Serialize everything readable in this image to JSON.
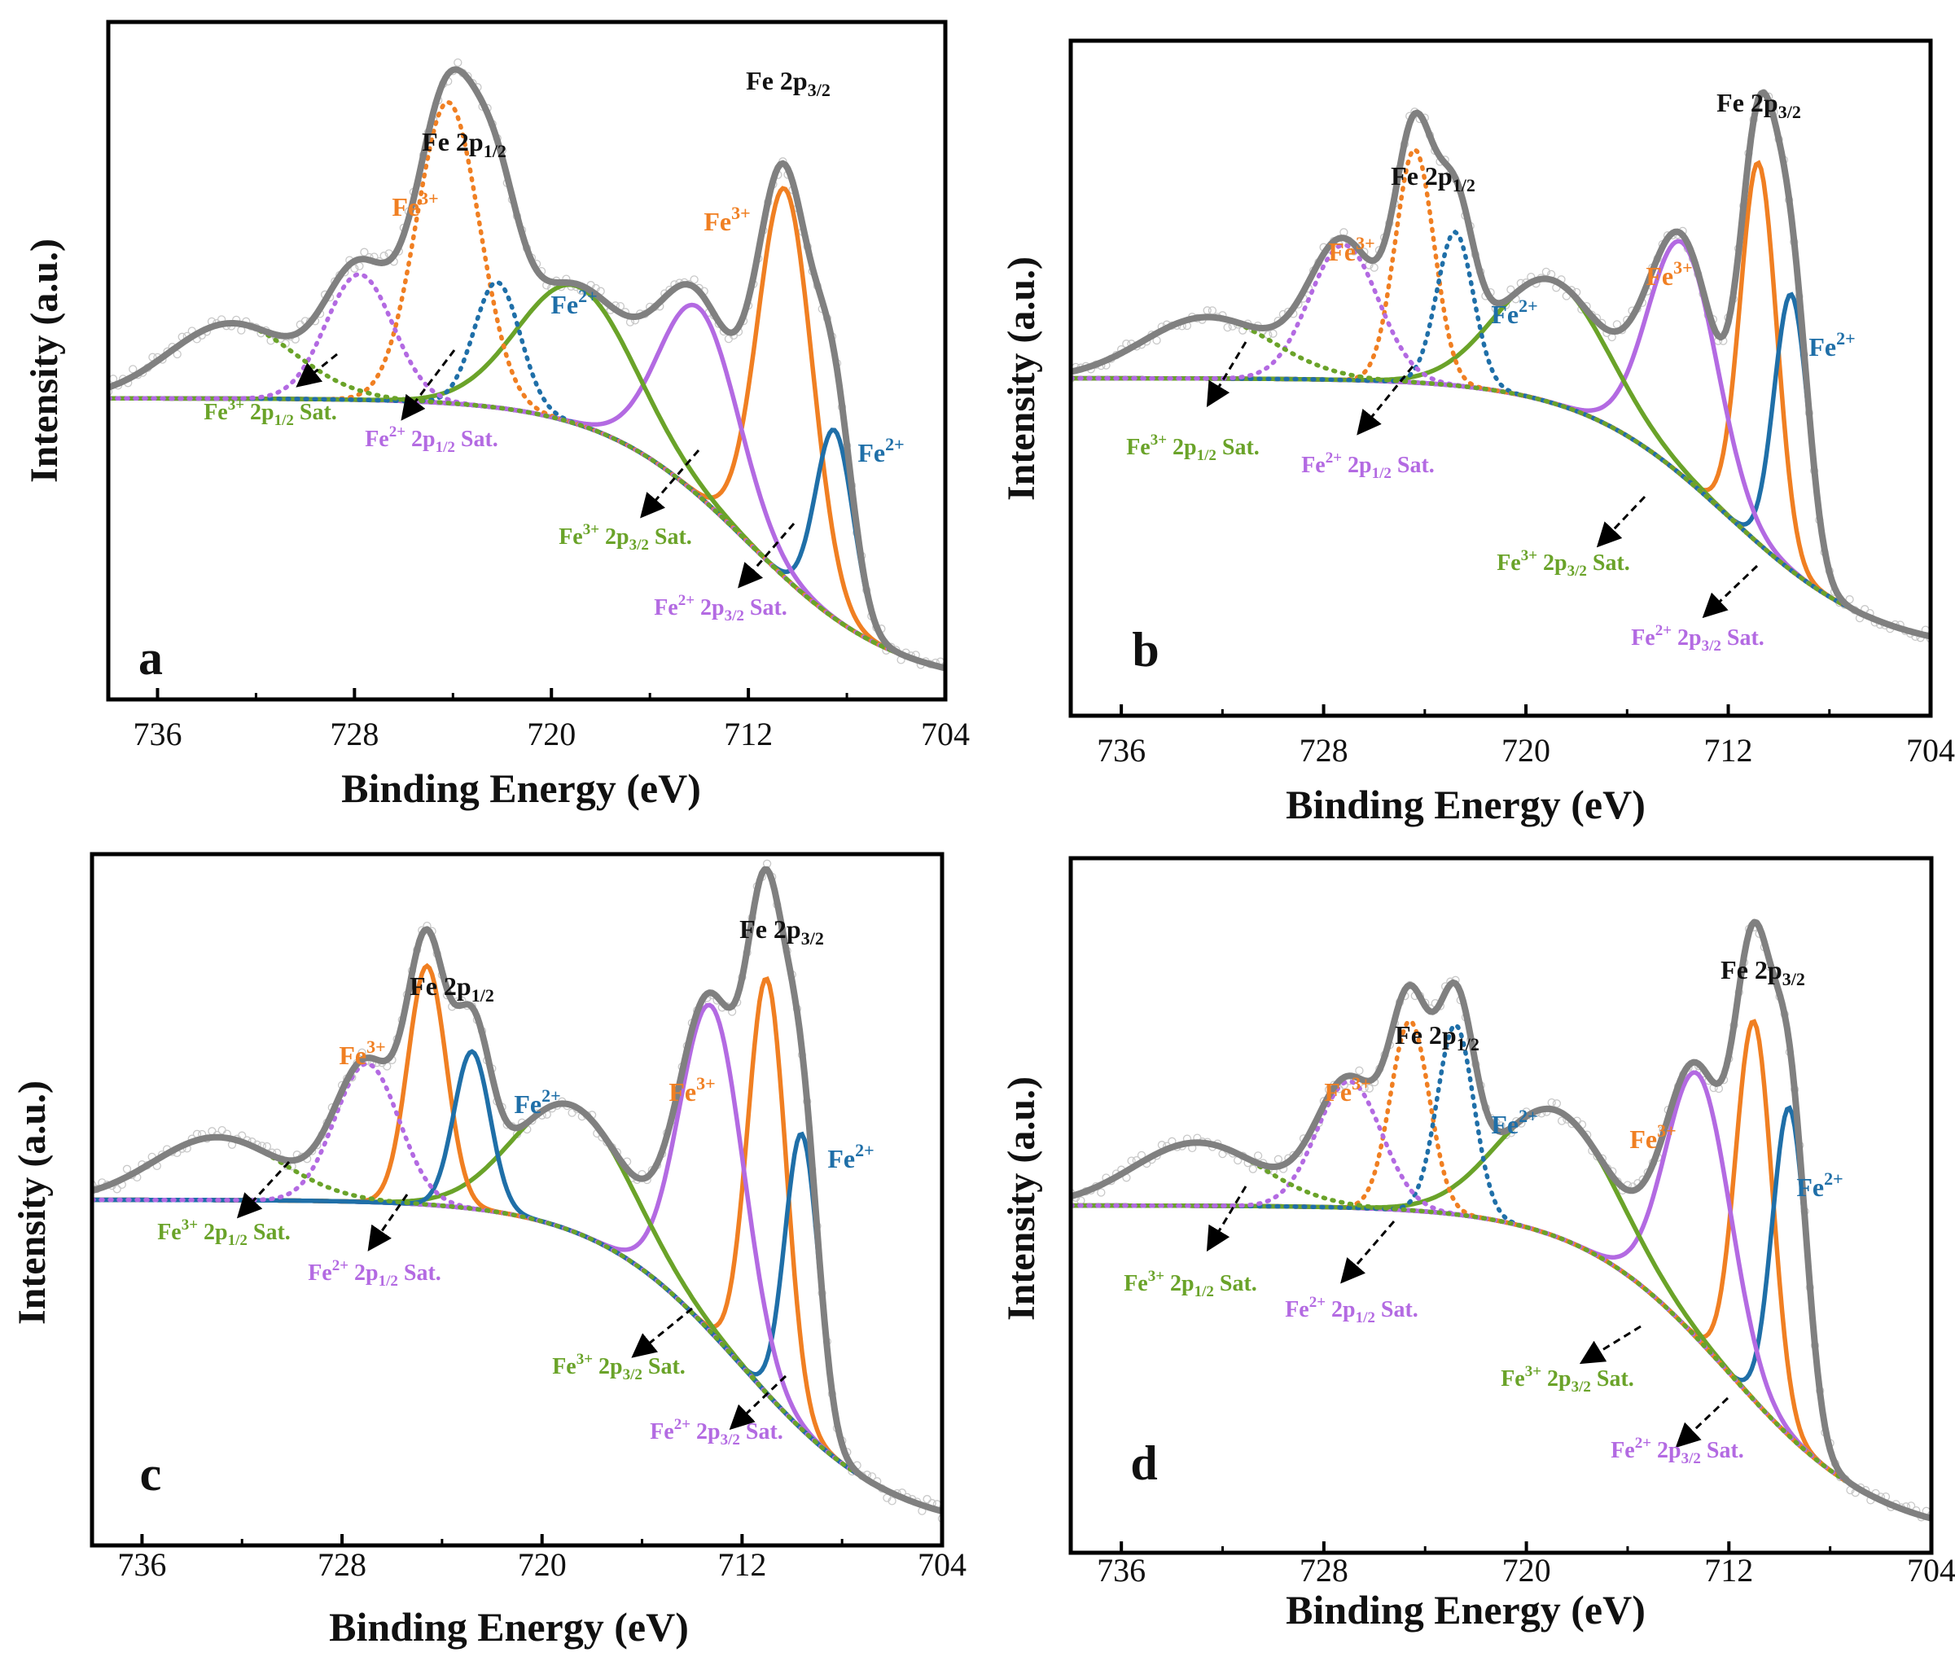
{
  "chart_data": [
    {
      "type": "line",
      "panel_label": "a",
      "title": "",
      "xlabel": "Binding Energy (eV)",
      "ylabel": "Intensity (a.u.)",
      "xlim": [
        738,
        704
      ],
      "ylim": [
        0,
        1.08
      ],
      "xticks": [
        "736",
        "728",
        "720",
        "712",
        "704"
      ],
      "peak_labels": {
        "main_3_2": {
          "base": "Fe 2p",
          "sub": "3/2"
        },
        "main_1_2": {
          "base": "Fe 2p",
          "sub": "1/2"
        },
        "fe3_3_2": {
          "base": "Fe",
          "sup": "3+"
        },
        "fe2_3_2": {
          "base": "Fe",
          "sup": "2+"
        },
        "fe3_1_2": {
          "base": "Fe",
          "sup": "3+"
        },
        "fe2_1_2": {
          "base": "Fe",
          "sup": "2+"
        }
      },
      "sat_labels": {
        "fe3_1_2_sat": {
          "pre": "Fe",
          "sup": "3+",
          "mid": " 2p",
          "sub": "1/2",
          "post": " Sat."
        },
        "fe2_1_2_sat": {
          "pre": "Fe",
          "sup": "2+",
          "mid": " 2p",
          "sub": "1/2",
          "post": " Sat."
        },
        "fe3_3_2_sat": {
          "pre": "Fe",
          "sup": "3+",
          "mid": " 2p",
          "sub": "3/2",
          "post": " Sat."
        },
        "fe2_3_2_sat": {
          "pre": "Fe",
          "sup": "2+",
          "mid": " 2p",
          "sub": "3/2",
          "post": " Sat."
        }
      },
      "background": {
        "low": 0.02,
        "high": 0.48,
        "center": 712,
        "width": 3.0
      },
      "components": [
        {
          "name": "Fe3+ 2p3/2",
          "center": 710.5,
          "fwhm": 2.6,
          "height": 0.62,
          "color": "#f07f22",
          "style": "solid"
        },
        {
          "name": "Fe2+ 2p3/2",
          "center": 708.5,
          "fwhm": 1.8,
          "height": 0.3,
          "color": "#1f6fa8",
          "style": "solid"
        },
        {
          "name": "Fe2+ 2p3/2 Sat.",
          "center": 714.0,
          "fwhm": 3.8,
          "height": 0.3,
          "color": "#b36ae2",
          "style": "solid"
        },
        {
          "name": "Fe3+ 2p3/2 Sat.",
          "center": 719.0,
          "fwhm": 5.5,
          "height": 0.22,
          "color": "#6aa329",
          "style": "solid"
        },
        {
          "name": "Fe3+ 2p1/2",
          "center": 724.2,
          "fwhm": 3.0,
          "height": 0.48,
          "color": "#f07f22",
          "style": "dotted"
        },
        {
          "name": "Fe2+ 2p1/2",
          "center": 722.2,
          "fwhm": 2.2,
          "height": 0.2,
          "color": "#1f6fa8",
          "style": "dotted"
        },
        {
          "name": "Fe2+ 2p1/2 Sat.",
          "center": 727.8,
          "fwhm": 3.2,
          "height": 0.2,
          "color": "#b36ae2",
          "style": "dotted"
        },
        {
          "name": "Fe3+ 2p1/2 Sat.",
          "center": 733.0,
          "fwhm": 6.0,
          "height": 0.12,
          "color": "#6aa329",
          "style": "dotted"
        }
      ]
    },
    {
      "type": "line",
      "panel_label": "b",
      "title": "",
      "xlabel": "Binding Energy (eV)",
      "ylabel": "Intensity (a.u.)",
      "xlim": [
        738,
        704
      ],
      "ylim": [
        0,
        1.1
      ],
      "xticks": [
        "736",
        "728",
        "720",
        "712",
        "704"
      ],
      "peak_labels": {
        "main_3_2": {
          "base": "Fe 2p",
          "sub": "3/2"
        },
        "main_1_2": {
          "base": "Fe 2p",
          "sub": "1/2"
        },
        "fe3_3_2": {
          "base": "Fe",
          "sup": "3+"
        },
        "fe2_3_2": {
          "base": "Fe",
          "sup": "2+"
        },
        "fe3_1_2": {
          "base": "Fe",
          "sup": "3+"
        },
        "fe2_1_2": {
          "base": "Fe",
          "sup": "2+"
        }
      },
      "sat_labels": {
        "fe3_1_2_sat": {
          "pre": "Fe",
          "sup": "3+",
          "mid": " 2p",
          "sub": "1/2",
          "post": " Sat."
        },
        "fe2_1_2_sat": {
          "pre": "Fe",
          "sup": "2+",
          "mid": " 2p",
          "sub": "1/2",
          "post": " Sat."
        },
        "fe3_3_2_sat": {
          "pre": "Fe",
          "sup": "3+",
          "mid": " 2p",
          "sub": "3/2",
          "post": " Sat."
        },
        "fe2_3_2_sat": {
          "pre": "Fe",
          "sup": "2+",
          "mid": " 2p",
          "sub": "3/2",
          "post": " Sat."
        }
      },
      "background": {
        "low": 0.1,
        "high": 0.55,
        "center": 712,
        "width": 3.0
      },
      "components": [
        {
          "name": "Fe3+ 2p3/2",
          "center": 710.8,
          "fwhm": 1.7,
          "height": 0.62,
          "color": "#f07f22",
          "style": "solid"
        },
        {
          "name": "Fe2+ 2p3/2",
          "center": 709.5,
          "fwhm": 1.6,
          "height": 0.45,
          "color": "#1f6fa8",
          "style": "solid"
        },
        {
          "name": "Fe2+ 2p3/2 Sat.",
          "center": 713.8,
          "fwhm": 3.2,
          "height": 0.38,
          "color": "#b36ae2",
          "style": "solid"
        },
        {
          "name": "Fe3+ 2p3/2 Sat.",
          "center": 719.0,
          "fwhm": 5.2,
          "height": 0.2,
          "color": "#6aa329",
          "style": "solid"
        },
        {
          "name": "Fe3+ 2p1/2",
          "center": 724.4,
          "fwhm": 1.8,
          "height": 0.38,
          "color": "#f07f22",
          "style": "dotted"
        },
        {
          "name": "Fe2+ 2p1/2",
          "center": 722.8,
          "fwhm": 1.7,
          "height": 0.25,
          "color": "#1f6fa8",
          "style": "dotted"
        },
        {
          "name": "Fe2+ 2p1/2 Sat.",
          "center": 727.2,
          "fwhm": 3.2,
          "height": 0.22,
          "color": "#b36ae2",
          "style": "dotted"
        },
        {
          "name": "Fe3+ 2p1/2 Sat.",
          "center": 732.6,
          "fwhm": 6.0,
          "height": 0.1,
          "color": "#6aa329",
          "style": "dotted"
        }
      ]
    },
    {
      "type": "line",
      "panel_label": "c",
      "title": "",
      "xlabel": "Binding Energy (eV)",
      "ylabel": "Intensity (a.u.)",
      "xlim": [
        738,
        704
      ],
      "ylim": [
        0,
        1.1
      ],
      "xticks": [
        "736",
        "728",
        "720",
        "712",
        "704"
      ],
      "peak_labels": {
        "main_3_2": {
          "base": "Fe 2p",
          "sub": "3/2"
        },
        "main_1_2": {
          "base": "Fe 2p",
          "sub": "1/2"
        },
        "fe3_3_2": {
          "base": "Fe",
          "sup": "3+"
        },
        "fe2_3_2": {
          "base": "Fe",
          "sup": "2+"
        },
        "fe3_1_2": {
          "base": "Fe",
          "sup": "3+"
        },
        "fe2_1_2": {
          "base": "Fe",
          "sup": "2+"
        }
      },
      "sat_labels": {
        "fe3_1_2_sat": {
          "pre": "Fe",
          "sup": "3+",
          "mid": " 2p",
          "sub": "1/2",
          "post": " Sat."
        },
        "fe2_1_2_sat": {
          "pre": "Fe",
          "sup": "2+",
          "mid": " 2p",
          "sub": "1/2",
          "post": " Sat."
        },
        "fe3_3_2_sat": {
          "pre": "Fe",
          "sup": "3+",
          "mid": " 2p",
          "sub": "3/2",
          "post": " Sat."
        },
        "fe2_3_2_sat": {
          "pre": "Fe",
          "sup": "2+",
          "mid": " 2p",
          "sub": "3/2",
          "post": " Sat."
        }
      },
      "background": {
        "low": 0.02,
        "high": 0.55,
        "center": 712,
        "width": 3.0
      },
      "components": [
        {
          "name": "Fe3+ 2p3/2",
          "center": 711.0,
          "fwhm": 1.8,
          "height": 0.66,
          "color": "#f07f22",
          "style": "solid"
        },
        {
          "name": "Fe2+ 2p3/2",
          "center": 709.6,
          "fwhm": 1.6,
          "height": 0.47,
          "color": "#1f6fa8",
          "style": "solid"
        },
        {
          "name": "Fe2+ 2p3/2 Sat.",
          "center": 713.2,
          "fwhm": 3.0,
          "height": 0.52,
          "color": "#b36ae2",
          "style": "solid"
        },
        {
          "name": "Fe3+ 2p3/2 Sat.",
          "center": 718.8,
          "fwhm": 5.5,
          "height": 0.2,
          "color": "#6aa329",
          "style": "solid"
        },
        {
          "name": "Fe3+ 2p1/2",
          "center": 724.6,
          "fwhm": 1.8,
          "height": 0.38,
          "color": "#f07f22",
          "style": "solid"
        },
        {
          "name": "Fe2+ 2p1/2",
          "center": 722.8,
          "fwhm": 1.7,
          "height": 0.25,
          "color": "#1f6fa8",
          "style": "solid"
        },
        {
          "name": "Fe2+ 2p1/2 Sat.",
          "center": 727.0,
          "fwhm": 3.0,
          "height": 0.22,
          "color": "#b36ae2",
          "style": "dotted"
        },
        {
          "name": "Fe3+ 2p1/2 Sat.",
          "center": 733.0,
          "fwhm": 6.0,
          "height": 0.1,
          "color": "#6aa329",
          "style": "dotted"
        }
      ]
    },
    {
      "type": "line",
      "panel_label": "d",
      "title": "",
      "xlabel": "Binding Energy (eV)",
      "ylabel": "Intensity (a.u.)",
      "xlim": [
        738,
        704
      ],
      "ylim": [
        0,
        1.1
      ],
      "xticks": [
        "736",
        "728",
        "720",
        "712",
        "704"
      ],
      "peak_labels": {
        "main_3_2": {
          "base": "Fe 2p",
          "sub": "3/2"
        },
        "main_1_2": {
          "base": "Fe 2p",
          "sub": "1/2"
        },
        "fe3_3_2": {
          "base": "Fe",
          "sup": "3+"
        },
        "fe2_3_2": {
          "base": "Fe",
          "sup": "2+"
        },
        "fe3_1_2": {
          "base": "Fe",
          "sup": "3+"
        },
        "fe2_1_2": {
          "base": "Fe",
          "sup": "2+"
        }
      },
      "sat_labels": {
        "fe3_1_2_sat": {
          "pre": "Fe",
          "sup": "3+",
          "mid": " 2p",
          "sub": "1/2",
          "post": " Sat."
        },
        "fe2_1_2_sat": {
          "pre": "Fe",
          "sup": "2+",
          "mid": " 2p",
          "sub": "1/2",
          "post": " Sat."
        },
        "fe3_3_2_sat": {
          "pre": "Fe",
          "sup": "3+",
          "mid": " 2p",
          "sub": "3/2",
          "post": " Sat."
        },
        "fe2_3_2_sat": {
          "pre": "Fe",
          "sup": "2+",
          "mid": " 2p",
          "sub": "3/2",
          "post": " Sat."
        }
      },
      "background": {
        "low": 0.02,
        "high": 0.55,
        "center": 712,
        "width": 3.0
      },
      "components": [
        {
          "name": "Fe3+ 2p3/2",
          "center": 711.0,
          "fwhm": 1.7,
          "height": 0.6,
          "color": "#f07f22",
          "style": "solid"
        },
        {
          "name": "Fe2+ 2p3/2",
          "center": 709.6,
          "fwhm": 1.6,
          "height": 0.52,
          "color": "#1f6fa8",
          "style": "solid"
        },
        {
          "name": "Fe2+ 2p3/2 Sat.",
          "center": 713.2,
          "fwhm": 3.0,
          "height": 0.42,
          "color": "#b36ae2",
          "style": "solid"
        },
        {
          "name": "Fe3+ 2p3/2 Sat.",
          "center": 718.8,
          "fwhm": 5.5,
          "height": 0.2,
          "color": "#6aa329",
          "style": "solid"
        },
        {
          "name": "Fe3+ 2p1/2",
          "center": 724.6,
          "fwhm": 1.8,
          "height": 0.3,
          "color": "#f07f22",
          "style": "dotted"
        },
        {
          "name": "Fe2+ 2p1/2",
          "center": 722.8,
          "fwhm": 1.7,
          "height": 0.3,
          "color": "#1f6fa8",
          "style": "dotted"
        },
        {
          "name": "Fe2+ 2p1/2 Sat.",
          "center": 727.0,
          "fwhm": 3.0,
          "height": 0.2,
          "color": "#b36ae2",
          "style": "dotted"
        },
        {
          "name": "Fe3+ 2p1/2 Sat.",
          "center": 733.0,
          "fwhm": 6.0,
          "height": 0.1,
          "color": "#6aa329",
          "style": "dotted"
        }
      ]
    }
  ],
  "colors": {
    "envelope": "#808080",
    "raw_data": "#c8c8c8",
    "background_a": "#8b8fe8",
    "frame": "#000000",
    "label_main": "#111111",
    "fe3": "#f07f22",
    "fe2": "#1f6fa8",
    "sat3": "#6aa329",
    "sat2": "#b36ae2"
  }
}
